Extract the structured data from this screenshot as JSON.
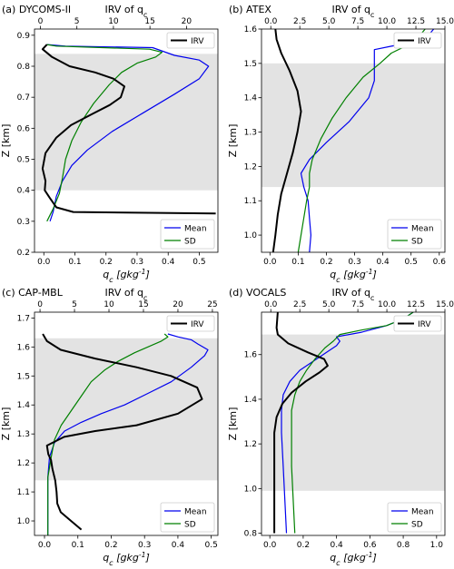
{
  "chart_data": [
    {
      "type": "line",
      "title": "(a) DYCOMS-II",
      "top_axis_label": "IRV of q_c",
      "xlabel": "q_c [gkg^{-1}]",
      "ylabel": "Z [km]",
      "xlim": [
        -0.03,
        0.56
      ],
      "top_xlim": [
        -0.8,
        24.3
      ],
      "ylim": [
        0.2,
        0.92
      ],
      "x_ticks": [
        0.0,
        0.1,
        0.2,
        0.3,
        0.4,
        0.5
      ],
      "x_tick_labels": [
        "0.0",
        "0.1",
        "0.2",
        "0.3",
        "0.4",
        "0.5"
      ],
      "top_ticks": [
        0,
        5,
        10,
        15,
        20
      ],
      "top_tick_labels": [
        "0",
        "5",
        "10",
        "15",
        "20"
      ],
      "y_ticks": [
        0.2,
        0.3,
        0.4,
        0.5,
        0.6,
        0.7,
        0.8,
        0.9
      ],
      "y_tick_labels": [
        "0.2",
        "0.3",
        "0.4",
        "0.5",
        "0.6",
        "0.7",
        "0.8",
        "0.9"
      ],
      "shade": [
        0.4,
        0.84
      ],
      "legend_top": {
        "label": "IRV"
      },
      "legend_bottom": {
        "labels": [
          "Mean",
          "SD"
        ]
      },
      "series": [
        {
          "name": "Mean",
          "color": "#0000ee",
          "axis": "bottom",
          "x": [
            0.02,
            0.03,
            0.04,
            0.06,
            0.09,
            0.14,
            0.22,
            0.32,
            0.42,
            0.5,
            0.53,
            0.5,
            0.42,
            0.35,
            0.07,
            0.01
          ],
          "y": [
            0.3,
            0.33,
            0.38,
            0.43,
            0.48,
            0.53,
            0.59,
            0.65,
            0.71,
            0.76,
            0.8,
            0.82,
            0.835,
            0.86,
            0.865,
            0.87
          ]
        },
        {
          "name": "SD",
          "color": "#008000",
          "axis": "bottom",
          "x": [
            0.01,
            0.03,
            0.05,
            0.06,
            0.07,
            0.09,
            0.12,
            0.16,
            0.21,
            0.25,
            0.3,
            0.36,
            0.38,
            0.34,
            0.04,
            0.01
          ],
          "y": [
            0.3,
            0.34,
            0.39,
            0.44,
            0.5,
            0.56,
            0.62,
            0.68,
            0.74,
            0.78,
            0.81,
            0.83,
            0.845,
            0.855,
            0.865,
            0.87
          ]
        },
        {
          "name": "IRV",
          "color": "#000000",
          "axis": "top",
          "x": [
            24.0,
            4.5,
            2.2,
            1.3,
            0.6,
            0.7,
            0.3,
            0.7,
            2.2,
            4.2,
            7.0,
            9.5,
            11.0,
            11.5,
            10.0,
            7.5,
            4.0,
            1.6,
            0.3,
            0.9
          ],
          "y": [
            0.325,
            0.33,
            0.345,
            0.375,
            0.4,
            0.43,
            0.47,
            0.52,
            0.57,
            0.61,
            0.645,
            0.675,
            0.7,
            0.735,
            0.76,
            0.78,
            0.8,
            0.83,
            0.855,
            0.87
          ]
        }
      ]
    },
    {
      "type": "line",
      "title": "(b) ATEX",
      "top_axis_label": "IRV of q_c",
      "xlabel": "q_c [gkg^{-1}]",
      "ylabel": "Z [km]",
      "xlim": [
        -0.03,
        0.62
      ],
      "top_xlim": [
        -0.8,
        15.0
      ],
      "ylim": [
        0.95,
        1.6
      ],
      "x_ticks": [
        0.0,
        0.1,
        0.2,
        0.3,
        0.4,
        0.5,
        0.6
      ],
      "x_tick_labels": [
        "0.0",
        "0.1",
        "0.2",
        "0.3",
        "0.4",
        "0.5",
        "0.6"
      ],
      "top_ticks": [
        0,
        2.5,
        5,
        7.5,
        10,
        12.5,
        15
      ],
      "top_tick_labels": [
        "0.0",
        "2.5",
        "5.0",
        "7.5",
        "10.0",
        "12.5",
        "15.0"
      ],
      "y_ticks": [
        1.0,
        1.1,
        1.2,
        1.3,
        1.4,
        1.5,
        1.6
      ],
      "y_tick_labels": [
        "1.0",
        "1.1",
        "1.2",
        "1.3",
        "1.4",
        "1.5",
        "1.6"
      ],
      "shade": [
        1.14,
        1.5
      ],
      "legend_top": {
        "label": "IRV"
      },
      "legend_bottom": {
        "labels": [
          "Mean",
          "SD"
        ]
      },
      "series": [
        {
          "name": "Mean",
          "color": "#0000ee",
          "axis": "bottom",
          "x": [
            0.14,
            0.145,
            0.14,
            0.135,
            0.12,
            0.11,
            0.14,
            0.2,
            0.28,
            0.35,
            0.37,
            0.37,
            0.43,
            0.5,
            0.55,
            0.58
          ],
          "y": [
            0.95,
            1.0,
            1.05,
            1.1,
            1.14,
            1.18,
            1.22,
            1.27,
            1.33,
            1.4,
            1.45,
            1.54,
            1.55,
            1.56,
            1.57,
            1.6
          ]
        },
        {
          "name": "SD",
          "color": "#008000",
          "axis": "bottom",
          "x": [
            0.1,
            0.11,
            0.12,
            0.13,
            0.14,
            0.14,
            0.15,
            0.18,
            0.22,
            0.27,
            0.33,
            0.39,
            0.43,
            0.48,
            0.52,
            0.55
          ],
          "y": [
            0.95,
            1.0,
            1.05,
            1.1,
            1.14,
            1.18,
            1.22,
            1.28,
            1.34,
            1.4,
            1.46,
            1.5,
            1.53,
            1.55,
            1.57,
            1.6
          ]
        },
        {
          "name": "IRV",
          "color": "#000000",
          "axis": "top",
          "x": [
            0.2,
            0.4,
            0.6,
            0.9,
            1.4,
            1.9,
            2.3,
            2.6,
            2.3,
            1.6,
            0.9,
            0.5,
            0.4
          ],
          "y": [
            0.95,
            1.0,
            1.06,
            1.12,
            1.18,
            1.24,
            1.3,
            1.36,
            1.42,
            1.48,
            1.53,
            1.57,
            1.6
          ]
        }
      ]
    },
    {
      "type": "line",
      "title": "(c) CAP-MBL",
      "top_axis_label": "IRV of q_c",
      "xlabel": "q_c [gkg^{-1}]",
      "ylabel": "Z [km]",
      "xlim": [
        -0.03,
        0.52
      ],
      "top_xlim": [
        -0.8,
        25.8
      ],
      "ylim": [
        0.95,
        1.72
      ],
      "x_ticks": [
        0.0,
        0.1,
        0.2,
        0.3,
        0.4,
        0.5
      ],
      "x_tick_labels": [
        "0.0",
        "0.1",
        "0.2",
        "0.3",
        "0.4",
        "0.5"
      ],
      "top_ticks": [
        0,
        5,
        10,
        15,
        20,
        25
      ],
      "top_tick_labels": [
        "0",
        "5",
        "10",
        "15",
        "20",
        "25"
      ],
      "y_ticks": [
        1.0,
        1.1,
        1.2,
        1.3,
        1.4,
        1.5,
        1.6,
        1.7
      ],
      "y_tick_labels": [
        "1.0",
        "1.1",
        "1.2",
        "1.3",
        "1.4",
        "1.5",
        "1.6",
        "1.7"
      ],
      "shade": [
        1.14,
        1.63
      ],
      "legend_top": {
        "label": "IRV"
      },
      "legend_bottom": {
        "labels": [
          "Mean",
          "SD"
        ]
      },
      "series": [
        {
          "name": "Mean",
          "color": "#0000ee",
          "axis": "bottom",
          "x": [
            0.01,
            0.01,
            0.01,
            0.015,
            0.03,
            0.06,
            0.11,
            0.17,
            0.24,
            0.31,
            0.38,
            0.44,
            0.48,
            0.49,
            0.46,
            0.44,
            0.4,
            0.37
          ],
          "y": [
            0.95,
            1.05,
            1.15,
            1.22,
            1.27,
            1.31,
            1.34,
            1.37,
            1.4,
            1.44,
            1.48,
            1.53,
            1.57,
            1.59,
            1.61,
            1.625,
            1.635,
            1.645
          ]
        },
        {
          "name": "SD",
          "color": "#008000",
          "axis": "bottom",
          "x": [
            0.01,
            0.01,
            0.01,
            0.02,
            0.03,
            0.05,
            0.08,
            0.11,
            0.14,
            0.18,
            0.22,
            0.27,
            0.31,
            0.35,
            0.37,
            0.36
          ],
          "y": [
            0.95,
            1.05,
            1.15,
            1.22,
            1.28,
            1.33,
            1.38,
            1.43,
            1.48,
            1.52,
            1.55,
            1.58,
            1.6,
            1.62,
            1.635,
            1.645
          ]
        },
        {
          "name": "IRV",
          "color": "#000000",
          "axis": "top",
          "x": [
            6.0,
            4.5,
            3.0,
            2.5,
            2.4,
            2.2,
            1.8,
            1.6,
            1.2,
            1.0,
            3.5,
            8.0,
            14.0,
            20.0,
            23.5,
            22.8,
            19.0,
            14.0,
            8.0,
            3.0,
            1.0,
            0.4
          ],
          "y": [
            0.97,
            1.0,
            1.03,
            1.06,
            1.1,
            1.14,
            1.18,
            1.21,
            1.23,
            1.26,
            1.29,
            1.31,
            1.33,
            1.37,
            1.42,
            1.46,
            1.5,
            1.53,
            1.56,
            1.59,
            1.62,
            1.645
          ]
        }
      ]
    },
    {
      "type": "line",
      "title": "(d) VOCALS",
      "top_axis_label": "IRV of q_c",
      "xlabel": "q_c [gkg^{-1}]",
      "ylabel": "Z [km]",
      "xlim": [
        -0.05,
        1.05
      ],
      "top_xlim": [
        -0.8,
        15.0
      ],
      "ylim": [
        0.79,
        1.79
      ],
      "x_ticks": [
        0.0,
        0.2,
        0.4,
        0.6,
        0.8,
        1.0
      ],
      "x_tick_labels": [
        "0.0",
        "0.2",
        "0.4",
        "0.6",
        "0.8",
        "1.0"
      ],
      "top_ticks": [
        0,
        2.5,
        5,
        7.5,
        10,
        12.5,
        15
      ],
      "top_tick_labels": [
        "0.0",
        "2.5",
        "5.0",
        "7.5",
        "10.0",
        "12.5",
        "15.0"
      ],
      "y_ticks": [
        0.8,
        1.0,
        1.2,
        1.4,
        1.6
      ],
      "y_tick_labels": [
        "0.8",
        "1.0",
        "1.2",
        "1.4",
        "1.6"
      ],
      "shade": [
        0.99,
        1.69
      ],
      "legend_top": {
        "label": "IRV"
      },
      "legend_bottom": {
        "labels": [
          "Mean",
          "SD"
        ]
      },
      "series": [
        {
          "name": "Mean",
          "color": "#0000ee",
          "axis": "bottom",
          "x": [
            0.1,
            0.09,
            0.08,
            0.07,
            0.07,
            0.08,
            0.12,
            0.18,
            0.26,
            0.34,
            0.4,
            0.42,
            0.4,
            0.55,
            0.7,
            0.8,
            0.86
          ],
          "y": [
            0.8,
            0.95,
            1.1,
            1.25,
            1.35,
            1.42,
            1.48,
            1.53,
            1.57,
            1.61,
            1.64,
            1.66,
            1.68,
            1.7,
            1.73,
            1.76,
            1.79
          ]
        },
        {
          "name": "SD",
          "color": "#008000",
          "axis": "bottom",
          "x": [
            0.15,
            0.14,
            0.13,
            0.13,
            0.13,
            0.15,
            0.18,
            0.22,
            0.27,
            0.33,
            0.38,
            0.42,
            0.55,
            0.7,
            0.8,
            0.86
          ],
          "y": [
            0.8,
            0.95,
            1.1,
            1.25,
            1.35,
            1.42,
            1.48,
            1.53,
            1.58,
            1.63,
            1.66,
            1.69,
            1.71,
            1.73,
            1.76,
            1.79
          ]
        },
        {
          "name": "IRV",
          "color": "#000000",
          "axis": "top",
          "x": [
            0.3,
            0.3,
            0.3,
            0.3,
            0.5,
            1.0,
            1.8,
            3.0,
            4.2,
            4.9,
            4.6,
            3.2,
            1.5,
            0.6,
            0.5,
            0.6
          ],
          "y": [
            0.8,
            0.95,
            1.1,
            1.25,
            1.32,
            1.38,
            1.43,
            1.48,
            1.52,
            1.55,
            1.58,
            1.61,
            1.65,
            1.69,
            1.72,
            1.79
          ]
        }
      ]
    }
  ]
}
